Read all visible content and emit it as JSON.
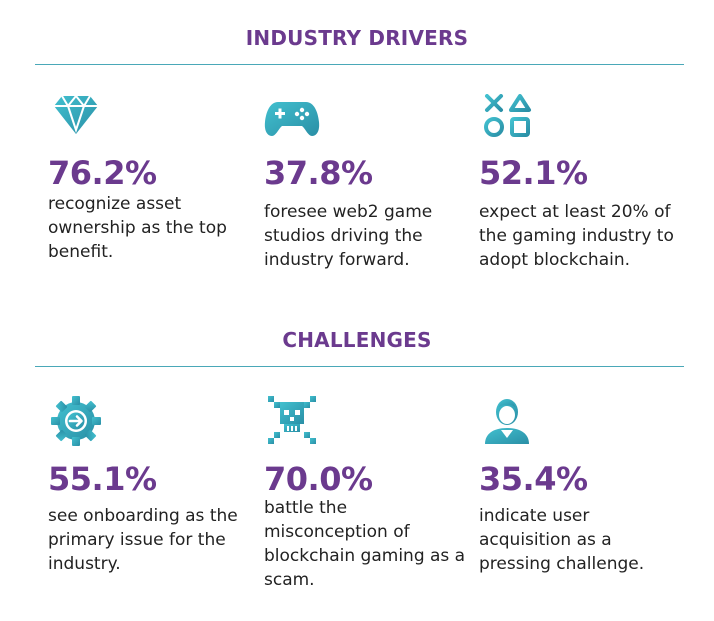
{
  "sections": [
    {
      "title": "INDUSTRY DRIVERS",
      "stats": [
        {
          "icon": "diamond-icon",
          "value": "76.2%",
          "text": "recognize asset ownership as the top benefit."
        },
        {
          "icon": "gamepad-icon",
          "value": "37.8%",
          "text": "foresee web2 game studios driving the industry forward."
        },
        {
          "icon": "game-shapes-icon",
          "value": "52.1%",
          "text": "expect at least 20% of the gaming industry to adopt blockchain."
        }
      ]
    },
    {
      "title": "CHALLENGES",
      "stats": [
        {
          "icon": "gear-arrow-icon",
          "value": "55.1%",
          "text": "see onboarding as the primary issue for the industry."
        },
        {
          "icon": "skull-crossbones-icon",
          "value": "70.0%",
          "text": "battle the misconception of blockchain gaming as a scam."
        },
        {
          "icon": "user-icon",
          "value": "35.4%",
          "text": "indicate user acquisition as a pressing challenge."
        }
      ]
    }
  ],
  "colors": {
    "title": "#6b3a8e",
    "value": "#6b3a8e",
    "text": "#222222",
    "divider": "#4aa8b8",
    "icon_gradient_start": "#3fb6c6",
    "icon_gradient_end": "#2a8fa6"
  }
}
